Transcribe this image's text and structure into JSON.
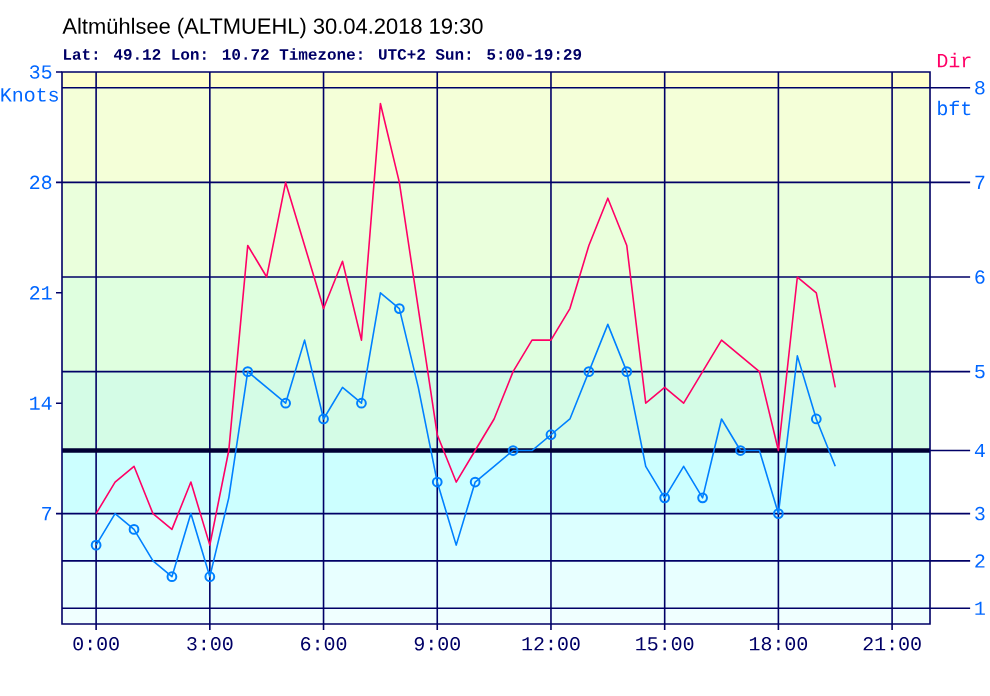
{
  "chart_data": {
    "type": "line",
    "title": "Altmühlsee (ALTMUEHL) 30.04.2018 19:30",
    "subtitle": "Lat: 49.12 Lon: 10.72 Timezone: UTC+2 Sun: 5:00-19:29",
    "ylabel": "Knots",
    "annotations": [
      "Dir",
      "bft",
      "1",
      "2",
      "3",
      "4",
      "5",
      "6",
      "7",
      "8"
    ],
    "x": [
      0,
      0.5,
      1,
      1.5,
      2,
      2.5,
      3,
      3.5,
      4,
      4.5,
      5,
      5.5,
      6,
      6.5,
      7,
      7.5,
      8,
      8.5,
      9,
      9.5,
      10,
      10.5,
      11,
      11.5,
      12,
      12.5,
      13,
      13.5,
      14,
      14.5,
      15,
      15.5,
      16,
      16.5,
      17,
      17.5,
      18,
      18.5,
      19,
      19.5
    ],
    "series": [
      {
        "color": "#ff0066",
        "values": [
          7,
          9,
          10,
          7,
          6,
          9,
          5,
          11,
          24,
          22,
          28,
          24,
          20,
          23,
          18,
          33,
          28,
          20,
          12,
          9,
          11,
          13,
          16,
          18,
          18,
          20,
          24,
          27,
          24,
          14,
          15,
          14,
          16,
          18,
          17,
          16,
          11,
          22,
          21,
          15
        ]
      },
      {
        "color": "#0080ff",
        "values": [
          5,
          7,
          6,
          4,
          3,
          7,
          3,
          8,
          16,
          15,
          14,
          18,
          13,
          15,
          14,
          21,
          20,
          15,
          9,
          5,
          9,
          10,
          11,
          11,
          12,
          13,
          16,
          19,
          16,
          10,
          8,
          10,
          8,
          13,
          11,
          11,
          7,
          17,
          13,
          10
        ]
      },
      {
        "type": "scatter",
        "color": "#0080ff",
        "marker": "circle",
        "x": [
          0,
          1,
          2,
          3,
          4,
          5,
          6,
          7,
          8,
          9,
          10,
          11,
          12,
          13,
          14,
          15,
          16,
          17,
          18,
          19
        ],
        "values": [
          5,
          6,
          3,
          3,
          16,
          14,
          13,
          14,
          20,
          9,
          9,
          11,
          12,
          16,
          16,
          8,
          8,
          11,
          7,
          13
        ]
      }
    ],
    "xlim": [
      -0.9,
      22
    ],
    "xticks": [
      {
        "value": 0,
        "label": "0:00"
      },
      {
        "value": 3,
        "label": "3:00"
      },
      {
        "value": 6,
        "label": "6:00"
      },
      {
        "value": 9,
        "label": "9:00"
      },
      {
        "value": 12,
        "label": "12:00"
      },
      {
        "value": 15,
        "label": "15:00"
      },
      {
        "value": 18,
        "label": "18:00"
      },
      {
        "value": 21,
        "label": "21:00"
      }
    ],
    "ylim": [
      0,
      35
    ],
    "yticks": [
      7,
      14,
      21,
      28,
      35
    ],
    "ref_lines": [
      {
        "axis": "y",
        "value": 1,
        "color": "#000066"
      },
      {
        "axis": "y",
        "value": 4,
        "color": "#000066"
      },
      {
        "axis": "y",
        "value": 7,
        "color": "#000066"
      },
      {
        "axis": "y",
        "value": 11,
        "color": "#000033"
      },
      {
        "axis": "y",
        "value": 16,
        "color": "#000066"
      },
      {
        "axis": "y",
        "value": 22,
        "color": "#000066"
      },
      {
        "axis": "y",
        "value": 28,
        "color": "#000066"
      },
      {
        "axis": "y",
        "value": 34,
        "color": "#000066"
      }
    ],
    "bands": [
      {
        "axis": "y",
        "from": 0,
        "to": 1,
        "color": "#f0ffff"
      },
      {
        "axis": "y",
        "from": 1,
        "to": 4,
        "color": "#e8ffff"
      },
      {
        "axis": "y",
        "from": 4,
        "to": 7,
        "color": "#dcffff"
      },
      {
        "axis": "y",
        "from": 7,
        "to": 11,
        "color": "#ccffff"
      },
      {
        "axis": "y",
        "from": 11,
        "to": 16,
        "color": "#d4fce6"
      },
      {
        "axis": "y",
        "from": 16,
        "to": 22,
        "color": "#dfffdf"
      },
      {
        "axis": "y",
        "from": 22,
        "to": 28,
        "color": "#eaffdc"
      },
      {
        "axis": "y",
        "from": 28,
        "to": 34,
        "color": "#f4ffd8"
      },
      {
        "axis": "y",
        "from": 34,
        "to": 35,
        "color": "#ffffcc"
      }
    ],
    "grid": "x"
  }
}
